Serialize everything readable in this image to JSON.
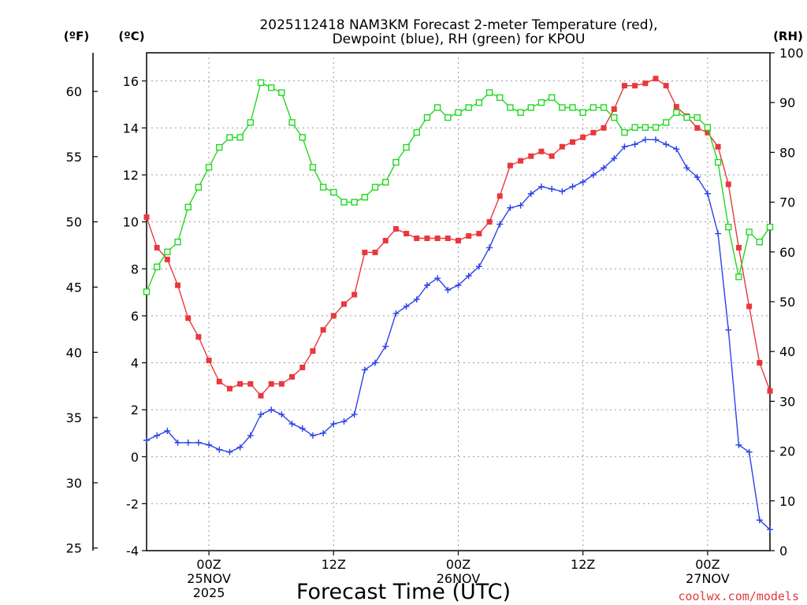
{
  "chart_data": {
    "type": "line",
    "title_line1": "2025112418 NAM3KM Forecast 2-meter Temperature (red),",
    "title_line2": "Dewpoint (blue), RH (green) for KPOU",
    "xlabel": "Forecast Time (UTC)",
    "credit": "coolwx.com/models",
    "units_f": "(ºF)",
    "units_c": "(ºC)",
    "units_rh": "(RH)",
    "x_range_hours": [
      0,
      60
    ],
    "x_ticks": [
      {
        "h": 6,
        "lines": [
          "00Z",
          "25NOV",
          "2025"
        ]
      },
      {
        "h": 18,
        "lines": [
          "12Z"
        ]
      },
      {
        "h": 30,
        "lines": [
          "00Z",
          "26NOV"
        ]
      },
      {
        "h": 42,
        "lines": [
          "12Z"
        ]
      },
      {
        "h": 54,
        "lines": [
          "00Z",
          "27NOV"
        ]
      }
    ],
    "ylim_c": [
      -4,
      17.2
    ],
    "yticks_c": [
      "-4",
      "-2",
      "0",
      "2",
      "4",
      "6",
      "8",
      "10",
      "12",
      "14",
      "16"
    ],
    "yticks_f": [
      "25",
      "30",
      "35",
      "40",
      "45",
      "50",
      "55",
      "60"
    ],
    "ylim_rh": [
      0,
      100
    ],
    "yticks_rh": [
      "0",
      "10",
      "20",
      "30",
      "40",
      "50",
      "60",
      "70",
      "80",
      "90",
      "100"
    ],
    "hours": [
      0,
      1,
      2,
      3,
      4,
      5,
      6,
      7,
      8,
      9,
      10,
      11,
      12,
      13,
      14,
      15,
      16,
      17,
      18,
      19,
      20,
      21,
      22,
      23,
      24,
      25,
      26,
      27,
      28,
      29,
      30,
      31,
      32,
      33,
      34,
      35,
      36,
      37,
      38,
      39,
      40,
      41,
      42,
      43,
      44,
      45,
      46,
      47,
      48,
      49,
      50,
      51,
      52,
      53,
      54,
      55,
      56,
      57,
      58,
      59,
      60
    ],
    "series": [
      {
        "name": "Temperature (C)",
        "color": "#e8383d",
        "marker": "filled-square",
        "axis": "c",
        "values": [
          10.2,
          8.9,
          8.4,
          7.3,
          5.9,
          5.1,
          4.1,
          3.2,
          2.9,
          3.1,
          3.1,
          2.6,
          3.1,
          3.1,
          3.4,
          3.8,
          4.5,
          5.4,
          6.0,
          6.5,
          6.9,
          8.7,
          8.7,
          9.2,
          9.7,
          9.5,
          9.3,
          9.3,
          9.3,
          9.3,
          9.2,
          9.4,
          9.5,
          10.0,
          11.1,
          12.4,
          12.6,
          12.8,
          13.0,
          12.8,
          13.2,
          13.4,
          13.6,
          13.8,
          14.0,
          14.8,
          15.8,
          15.8,
          15.9,
          16.1,
          15.8,
          14.9,
          14.5,
          14.0,
          13.8,
          13.2,
          11.6,
          8.9,
          6.4,
          4.0,
          2.8
        ]
      },
      {
        "name": "Dewpoint (C)",
        "color": "#2b42e8",
        "marker": "plus",
        "axis": "c",
        "values": [
          0.7,
          0.9,
          1.1,
          0.6,
          0.6,
          0.6,
          0.5,
          0.3,
          0.2,
          0.4,
          0.9,
          1.8,
          2.0,
          1.8,
          1.4,
          1.2,
          0.9,
          1.0,
          1.4,
          1.5,
          1.8,
          3.7,
          4.0,
          4.7,
          6.1,
          6.4,
          6.7,
          7.3,
          7.6,
          7.1,
          7.3,
          7.7,
          8.1,
          8.9,
          9.9,
          10.6,
          10.7,
          11.2,
          11.5,
          11.4,
          11.3,
          11.5,
          11.7,
          12.0,
          12.3,
          12.7,
          13.2,
          13.3,
          13.5,
          13.5,
          13.3,
          13.1,
          12.3,
          11.9,
          11.2,
          9.5,
          5.4,
          0.5,
          0.2,
          -2.7,
          -3.1
        ]
      },
      {
        "name": "RH (%)",
        "color": "#22d822",
        "marker": "open-square",
        "axis": "rh",
        "values": [
          52,
          57,
          60,
          62,
          69,
          73,
          77,
          81,
          83,
          83,
          86,
          94,
          93,
          92,
          86,
          83,
          77,
          73,
          72,
          70,
          70,
          71,
          73,
          74,
          78,
          81,
          84,
          87,
          89,
          87,
          88,
          89,
          90,
          92,
          91,
          89,
          88,
          89,
          90,
          91,
          89,
          89,
          88,
          89,
          89,
          87,
          84,
          85,
          85,
          85,
          86,
          88,
          87,
          87,
          85,
          78,
          65,
          55,
          64,
          62,
          65
        ]
      }
    ]
  }
}
